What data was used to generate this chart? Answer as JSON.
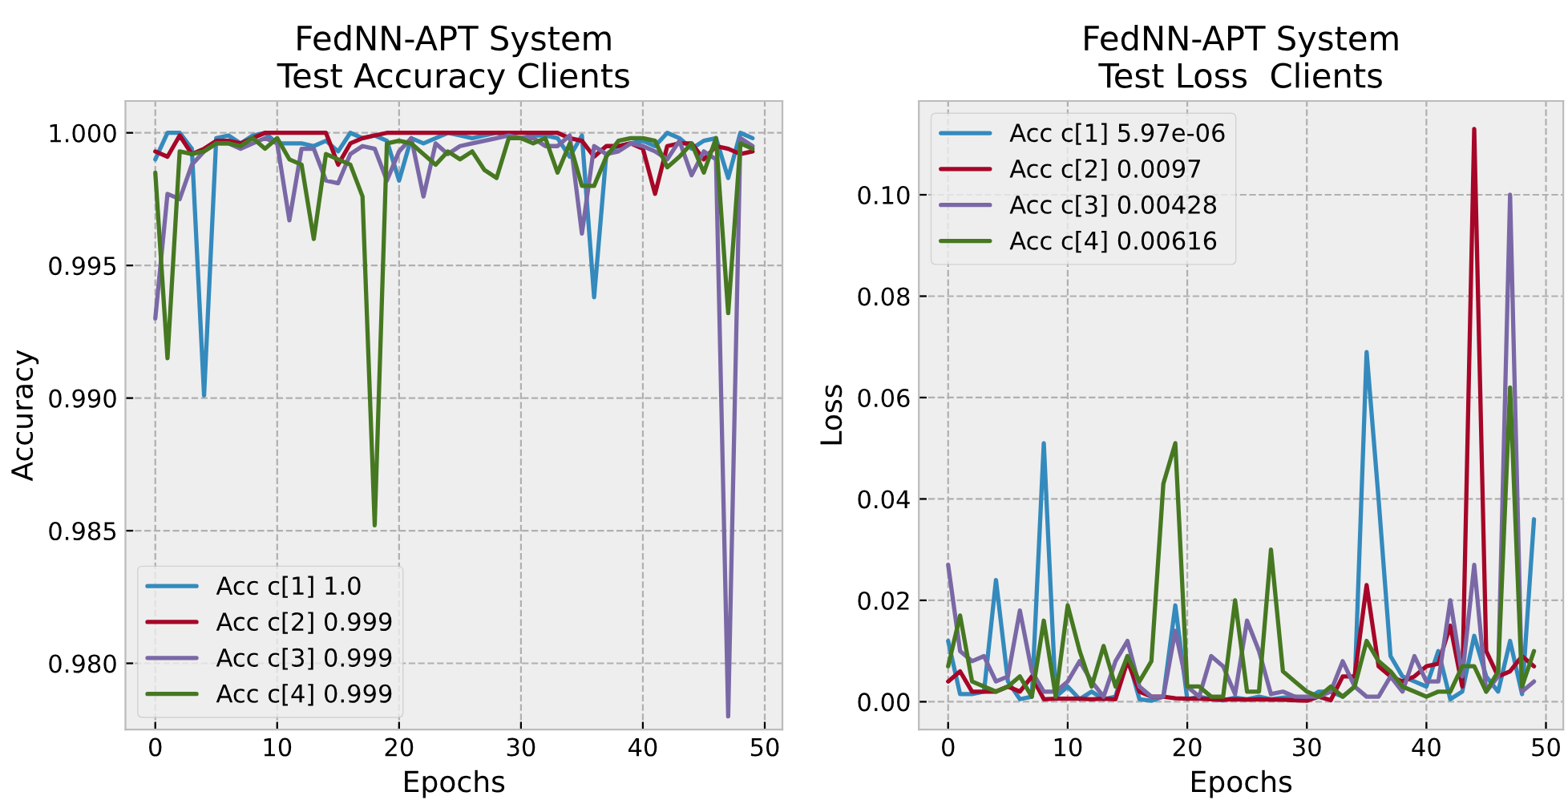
{
  "chart_data": [
    {
      "type": "line",
      "title": "FedNN-APT System\nTest Accuracy Clients",
      "xlabel": "Epochs",
      "ylabel": "Accuracy",
      "x": [
        0,
        1,
        2,
        3,
        4,
        5,
        6,
        7,
        8,
        9,
        10,
        11,
        12,
        13,
        14,
        15,
        16,
        17,
        18,
        19,
        20,
        21,
        22,
        23,
        24,
        25,
        26,
        27,
        28,
        29,
        30,
        31,
        32,
        33,
        34,
        35,
        36,
        37,
        38,
        39,
        40,
        41,
        42,
        43,
        44,
        45,
        46,
        47,
        48,
        49
      ],
      "series": [
        {
          "name": "Acc c[1] 1.0",
          "color": "#348abd",
          "values": [
            0.999,
            1.0,
            1.0,
            0.9994,
            0.9901,
            0.9998,
            0.9999,
            0.9996,
            0.9999,
            1.0,
            0.9996,
            0.9996,
            0.9996,
            0.9995,
            0.9997,
            0.9993,
            1.0,
            0.9998,
            0.9999,
            0.9997,
            0.9982,
            0.9998,
            0.9996,
            0.9998,
            1.0,
            0.9999,
            0.9998,
            0.9999,
            1.0,
            0.9999,
            0.9998,
            0.9999,
            0.9999,
            0.9998,
            0.9991,
            0.9999,
            0.9938,
            0.9992,
            0.9995,
            0.9996,
            0.9997,
            0.9995,
            1.0,
            0.9998,
            0.9994,
            0.9997,
            0.9998,
            0.9983,
            1.0,
            0.9998
          ]
        },
        {
          "name": "Acc c[2] 0.999",
          "color": "#a60628",
          "values": [
            0.9993,
            0.9991,
            0.9999,
            0.9992,
            0.9994,
            0.9997,
            0.9997,
            0.9996,
            0.9998,
            1.0,
            1.0,
            1.0,
            1.0,
            1.0,
            1.0,
            0.9988,
            0.9996,
            0.9998,
            0.9999,
            1.0,
            1.0,
            1.0,
            1.0,
            1.0,
            1.0,
            1.0,
            1.0,
            1.0,
            1.0,
            1.0,
            1.0,
            1.0,
            1.0,
            1.0,
            0.9998,
            0.9997,
            0.9991,
            0.9995,
            0.9995,
            0.9996,
            0.9994,
            0.9977,
            0.9995,
            0.9996,
            0.9996,
            0.999,
            0.9995,
            0.9994,
            0.9992,
            0.9993
          ]
        },
        {
          "name": "Acc c[3] 0.999",
          "color": "#7a68a6",
          "values": [
            0.993,
            0.9977,
            0.9975,
            0.9988,
            0.9993,
            0.9996,
            0.9996,
            0.9994,
            0.9996,
            0.9998,
            0.9996,
            0.9967,
            0.9994,
            0.9994,
            0.9982,
            0.9981,
            0.9992,
            0.9995,
            0.9994,
            0.9982,
            0.9993,
            0.9998,
            0.9976,
            0.9996,
            0.9992,
            0.9995,
            0.9996,
            0.9997,
            0.9998,
            0.9999,
            0.9998,
            0.9998,
            0.9995,
            0.9995,
            0.9999,
            0.9962,
            0.9995,
            0.9992,
            0.9993,
            0.9996,
            0.9995,
            0.9993,
            0.999,
            0.9997,
            0.9984,
            0.9993,
            0.999,
            0.978,
            0.9998,
            0.9995
          ]
        },
        {
          "name": "Acc c[4] 0.999",
          "color": "#467821",
          "values": [
            0.9985,
            0.9915,
            0.9993,
            0.9992,
            0.9993,
            0.9996,
            0.9996,
            0.9995,
            0.9998,
            0.9994,
            0.9998,
            0.999,
            0.9988,
            0.996,
            0.9992,
            0.999,
            0.9988,
            0.9976,
            0.9852,
            0.9996,
            0.9997,
            0.9996,
            0.9992,
            0.9988,
            0.9993,
            0.999,
            0.9993,
            0.9986,
            0.9983,
            0.9998,
            0.9998,
            0.9996,
            0.9998,
            0.9985,
            0.9996,
            0.998,
            0.998,
            0.9991,
            0.9997,
            0.9998,
            0.9998,
            0.9997,
            0.9987,
            0.9991,
            0.9996,
            0.9985,
            0.9998,
            0.9932,
            0.9996,
            0.9994
          ]
        }
      ],
      "xlim": [
        -2.45,
        51.45
      ],
      "ylim": [
        0.9775,
        1.0012
      ],
      "xticks": [
        0,
        10,
        20,
        30,
        40,
        50
      ],
      "yticks": [
        {
          "value": 0.98,
          "label": "0.980"
        },
        {
          "value": 0.985,
          "label": "0.985"
        },
        {
          "value": 0.99,
          "label": "0.990"
        },
        {
          "value": 0.995,
          "label": "0.995"
        },
        {
          "value": 1.0,
          "label": "1.000"
        }
      ],
      "grid": true,
      "legend": "bottom left"
    },
    {
      "type": "line",
      "title": "FedNN-APT System\nTest Loss  Clients",
      "xlabel": "Epochs",
      "ylabel": "Loss",
      "x": [
        0,
        1,
        2,
        3,
        4,
        5,
        6,
        7,
        8,
        9,
        10,
        11,
        12,
        13,
        14,
        15,
        16,
        17,
        18,
        19,
        20,
        21,
        22,
        23,
        24,
        25,
        26,
        27,
        28,
        29,
        30,
        31,
        32,
        33,
        34,
        35,
        36,
        37,
        38,
        39,
        40,
        41,
        42,
        43,
        44,
        45,
        46,
        47,
        48,
        49
      ],
      "series": [
        {
          "name": "Acc c[1] 5.97e-06",
          "color": "#348abd",
          "values": [
            0.012,
            0.0015,
            0.0015,
            0.002,
            0.024,
            0.004,
            0.0005,
            0.001,
            0.051,
            0.001,
            0.003,
            0.0005,
            0.002,
            0.0005,
            0.001,
            0.009,
            0.0005,
            0.0002,
            0.001,
            0.019,
            0.0005,
            0.001,
            0.0005,
            0.0003,
            0.0008,
            0.0005,
            0.001,
            0.0005,
            0.0008,
            0.001,
            0.0005,
            0.002,
            0.002,
            0.001,
            0.003,
            0.069,
            0.04,
            0.009,
            0.005,
            0.004,
            0.003,
            0.01,
            0.0005,
            0.002,
            0.013,
            0.005,
            0.002,
            0.012,
            0.0015,
            0.036
          ]
        },
        {
          "name": "Acc c[2] 0.0097",
          "color": "#a60628",
          "values": [
            0.004,
            0.006,
            0.002,
            0.002,
            0.002,
            0.003,
            0.002,
            0.005,
            0.0005,
            0.0006,
            0.0006,
            0.0006,
            0.0005,
            0.0006,
            0.0005,
            0.008,
            0.002,
            0.001,
            0.001,
            0.0007,
            0.0006,
            0.0006,
            0.0005,
            0.0004,
            0.0005,
            0.0004,
            0.0005,
            0.0004,
            0.0004,
            0.0003,
            0.0002,
            0.001,
            0.0003,
            0.005,
            0.005,
            0.023,
            0.007,
            0.005,
            0.004,
            0.005,
            0.007,
            0.0075,
            0.015,
            0.003,
            0.113,
            0.01,
            0.005,
            0.006,
            0.009,
            0.007
          ]
        },
        {
          "name": "Acc c[3] 0.00428",
          "color": "#7a68a6",
          "values": [
            0.027,
            0.01,
            0.008,
            0.009,
            0.004,
            0.005,
            0.018,
            0.006,
            0.002,
            0.002,
            0.004,
            0.008,
            0.004,
            0.001,
            0.008,
            0.012,
            0.003,
            0.001,
            0.001,
            0.014,
            0.003,
            0.001,
            0.009,
            0.007,
            0.0015,
            0.016,
            0.01,
            0.0015,
            0.002,
            0.001,
            0.001,
            0.001,
            0.002,
            0.008,
            0.003,
            0.001,
            0.001,
            0.005,
            0.002,
            0.009,
            0.004,
            0.004,
            0.02,
            0.005,
            0.027,
            0.002,
            0.005,
            0.1,
            0.002,
            0.004
          ]
        },
        {
          "name": "Acc c[4] 0.00616",
          "color": "#467821",
          "values": [
            0.007,
            0.017,
            0.004,
            0.003,
            0.002,
            0.003,
            0.005,
            0.001,
            0.016,
            0.001,
            0.019,
            0.01,
            0.003,
            0.011,
            0.003,
            0.009,
            0.004,
            0.008,
            0.043,
            0.051,
            0.003,
            0.003,
            0.001,
            0.001,
            0.02,
            0.002,
            0.002,
            0.03,
            0.006,
            0.004,
            0.002,
            0.001,
            0.003,
            0.001,
            0.003,
            0.012,
            0.008,
            0.006,
            0.003,
            0.002,
            0.001,
            0.002,
            0.002,
            0.007,
            0.007,
            0.002,
            0.006,
            0.062,
            0.003,
            0.01
          ]
        }
      ],
      "xlim": [
        -2.45,
        51.45
      ],
      "ylim": [
        -0.0055,
        0.1185
      ],
      "xticks": [
        0,
        10,
        20,
        30,
        40,
        50
      ],
      "yticks": [
        {
          "value": 0.0,
          "label": "0.00"
        },
        {
          "value": 0.02,
          "label": "0.02"
        },
        {
          "value": 0.04,
          "label": "0.04"
        },
        {
          "value": 0.06,
          "label": "0.06"
        },
        {
          "value": 0.08,
          "label": "0.08"
        },
        {
          "value": 0.1,
          "label": "0.10"
        }
      ],
      "grid": true,
      "legend": "top left"
    }
  ]
}
